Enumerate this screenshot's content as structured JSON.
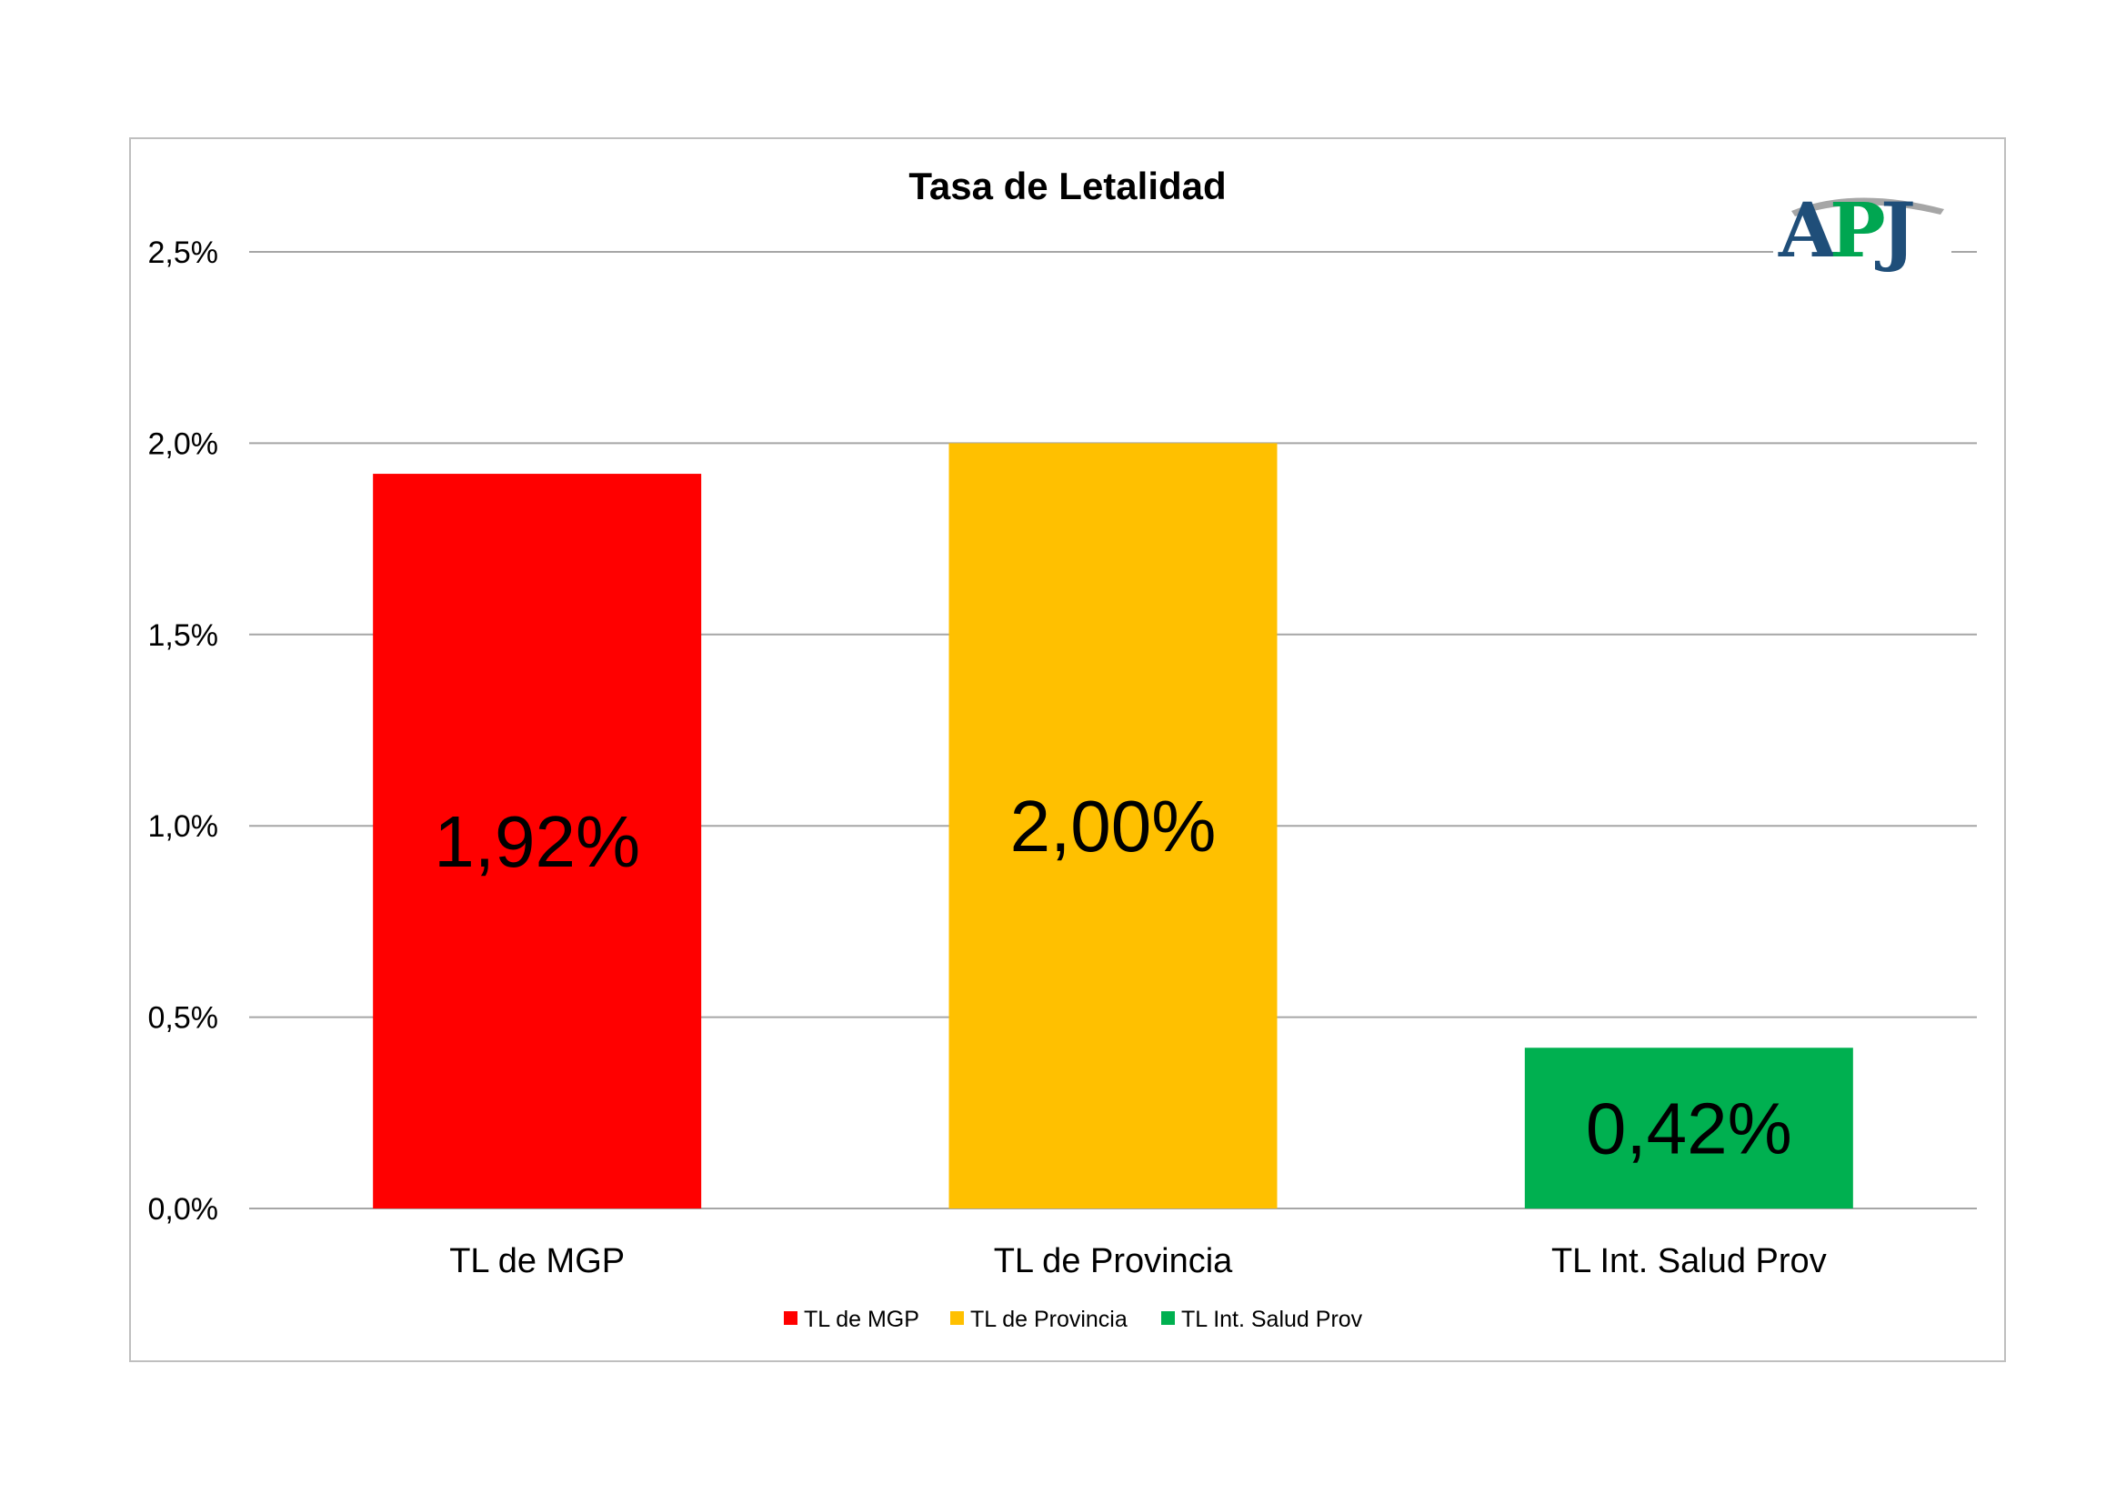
{
  "chart_data": {
    "type": "bar",
    "title": "Tasa de Letalidad",
    "categories": [
      "TL de MGP",
      "TL de Provincia",
      "TL Int. Salud Prov"
    ],
    "values": [
      1.92,
      2.0,
      0.42
    ],
    "data_labels": [
      "1,92%",
      "2,00%",
      "0,42%"
    ],
    "colors": [
      "#ff0000",
      "#ffc000",
      "#00b050"
    ],
    "ylim": [
      0,
      2.5
    ],
    "yticks": [
      0,
      0.5,
      1.0,
      1.5,
      2.0,
      2.5
    ],
    "ytick_labels": [
      "0,0%",
      "0,5%",
      "1,0%",
      "1,5%",
      "2,0%",
      "2,5%"
    ],
    "grid": true,
    "legend": {
      "position": "bottom",
      "entries": [
        "TL de MGP",
        "TL de Provincia",
        "TL Int. Salud Prov"
      ]
    }
  },
  "logo": {
    "text": "APJ",
    "colors": [
      "#1f4e79",
      "#00a651",
      "#a6a6a6"
    ]
  }
}
